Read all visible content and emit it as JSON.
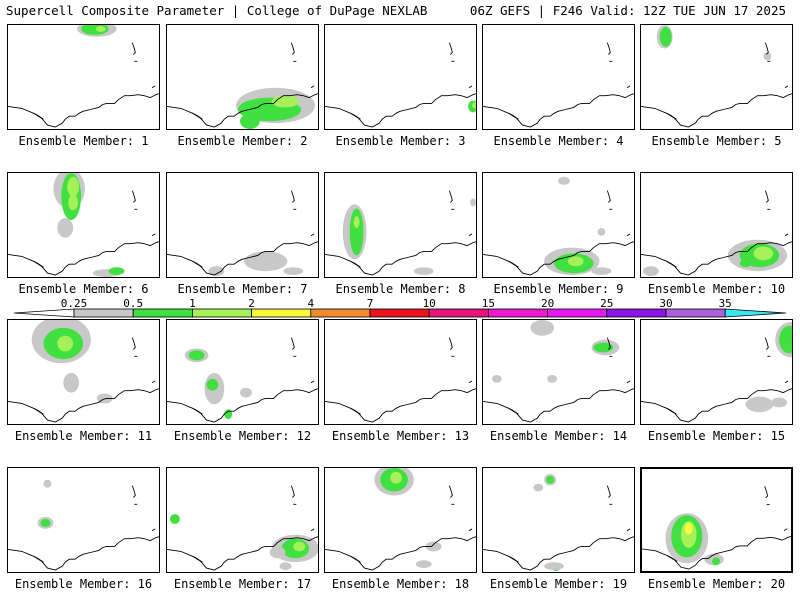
{
  "header": {
    "left": "Supercell Composite Parameter | College of DuPage NEXLAB",
    "right": "06Z GEFS | F246 Valid: 12Z TUE JUN 17 2025"
  },
  "colorbar": {
    "levels": [
      "0.25",
      "0.5",
      "1",
      "2",
      "4",
      "7",
      "10",
      "15",
      "20",
      "25",
      "30",
      "35"
    ],
    "colors": [
      "#ffffff",
      "#c8c8c8",
      "#3fe03f",
      "#a6f05a",
      "#fafa3c",
      "#f08a2a",
      "#e8141e",
      "#e8147a",
      "#f019d2",
      "#e619f0",
      "#8c14e6",
      "#aa60dc",
      "#3ce6f0"
    ]
  },
  "panels": [
    {
      "label": "Ensemble Member: 1"
    },
    {
      "label": "Ensemble Member: 2"
    },
    {
      "label": "Ensemble Member: 3"
    },
    {
      "label": "Ensemble Member: 4"
    },
    {
      "label": "Ensemble Member: 5"
    },
    {
      "label": "Ensemble Member: 6"
    },
    {
      "label": "Ensemble Member: 7"
    },
    {
      "label": "Ensemble Member: 8"
    },
    {
      "label": "Ensemble Member: 9"
    },
    {
      "label": "Ensemble Member: 10"
    },
    {
      "label": "Ensemble Member: 11"
    },
    {
      "label": "Ensemble Member: 12"
    },
    {
      "label": "Ensemble Member: 13"
    },
    {
      "label": "Ensemble Member: 14"
    },
    {
      "label": "Ensemble Member: 15"
    },
    {
      "label": "Ensemble Member: 16"
    },
    {
      "label": "Ensemble Member: 17"
    },
    {
      "label": "Ensemble Member: 18"
    },
    {
      "label": "Ensemble Member: 19"
    },
    {
      "label": "Ensemble Member: 20",
      "selected": true
    }
  ]
}
